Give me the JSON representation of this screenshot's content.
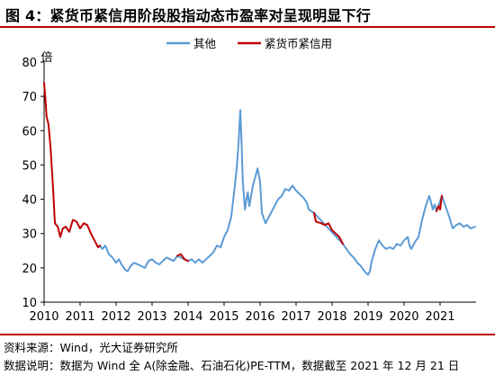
{
  "figure": {
    "title": "图 4：紧货币紧信用阶段股指动态市盈率对呈现明显下行",
    "source": "资料来源：Wind，光大证券研究所",
    "description": "数据说明：数据为 Wind 全 A(除金融、石油石化)PE-TTM，数据截至 2021 年 12 月 21 日"
  },
  "chart_data": {
    "type": "line",
    "title": "",
    "xlabel": "",
    "ylabel": "倍",
    "xlim": [
      2010,
      2022
    ],
    "ylim": [
      10,
      80
    ],
    "x_ticks": [
      "2010",
      "2011",
      "2012",
      "2013",
      "2014",
      "2015",
      "2016",
      "2017",
      "2018",
      "2019",
      "2020",
      "2021"
    ],
    "y_ticks": [
      "10",
      "20",
      "30",
      "40",
      "50",
      "60",
      "70",
      "80"
    ],
    "legend_position": "top-center",
    "colors": {
      "其他": "#5b9bd5",
      "紧货币紧信用": "#c00000"
    },
    "series": [
      {
        "name": "其他",
        "points": [
          [
            2011.55,
            26.5
          ],
          [
            2011.62,
            25.5
          ],
          [
            2011.7,
            26.5
          ],
          [
            2011.8,
            24.0
          ],
          [
            2011.9,
            23.0
          ],
          [
            2012.0,
            21.5
          ],
          [
            2012.08,
            22.5
          ],
          [
            2012.15,
            21.0
          ],
          [
            2012.25,
            19.5
          ],
          [
            2012.32,
            19.0
          ],
          [
            2012.4,
            20.5
          ],
          [
            2012.5,
            21.5
          ],
          [
            2012.6,
            21.0
          ],
          [
            2012.7,
            20.5
          ],
          [
            2012.8,
            20.0
          ],
          [
            2012.9,
            22.0
          ],
          [
            2013.0,
            22.5
          ],
          [
            2013.1,
            21.5
          ],
          [
            2013.2,
            21.0
          ],
          [
            2013.3,
            22.0
          ],
          [
            2013.4,
            23.0
          ],
          [
            2013.5,
            22.5
          ],
          [
            2013.6,
            22.0
          ],
          [
            2013.7,
            23.5
          ],
          [
            2014.0,
            22.0
          ],
          [
            2014.1,
            22.5
          ],
          [
            2014.2,
            21.5
          ],
          [
            2014.3,
            22.5
          ],
          [
            2014.4,
            21.5
          ],
          [
            2014.5,
            22.5
          ],
          [
            2014.6,
            23.5
          ],
          [
            2014.7,
            24.5
          ],
          [
            2014.8,
            26.5
          ],
          [
            2014.9,
            26.0
          ],
          [
            2015.0,
            29.0
          ],
          [
            2015.1,
            31.0
          ],
          [
            2015.2,
            35.0
          ],
          [
            2015.3,
            44.0
          ],
          [
            2015.35,
            49.0
          ],
          [
            2015.4,
            56.0
          ],
          [
            2015.45,
            66.0
          ],
          [
            2015.48,
            58.0
          ],
          [
            2015.52,
            45.0
          ],
          [
            2015.58,
            37.0
          ],
          [
            2015.62,
            40.0
          ],
          [
            2015.66,
            42.0
          ],
          [
            2015.7,
            38.0
          ],
          [
            2015.8,
            44.0
          ],
          [
            2015.88,
            47.0
          ],
          [
            2015.93,
            49.0
          ],
          [
            2016.0,
            45.0
          ],
          [
            2016.05,
            36.0
          ],
          [
            2016.15,
            33.0
          ],
          [
            2016.3,
            36.0
          ],
          [
            2016.4,
            38.0
          ],
          [
            2016.5,
            40.0
          ],
          [
            2016.6,
            41.0
          ],
          [
            2016.7,
            43.0
          ],
          [
            2016.8,
            42.5
          ],
          [
            2016.9,
            44.0
          ],
          [
            2017.0,
            42.5
          ],
          [
            2017.1,
            41.5
          ],
          [
            2017.2,
            40.5
          ],
          [
            2017.3,
            39.0
          ],
          [
            2017.35,
            37.0
          ],
          [
            2017.5,
            36.0
          ],
          [
            2018.3,
            27.0
          ],
          [
            2018.4,
            25.5
          ],
          [
            2018.5,
            24.0
          ],
          [
            2018.6,
            23.0
          ],
          [
            2018.7,
            21.5
          ],
          [
            2018.8,
            20.5
          ],
          [
            2018.9,
            19.0
          ],
          [
            2019.0,
            18.0
          ],
          [
            2019.05,
            19.0
          ],
          [
            2019.1,
            22.0
          ],
          [
            2019.2,
            25.5
          ],
          [
            2019.3,
            28.0
          ],
          [
            2019.4,
            26.5
          ],
          [
            2019.5,
            25.5
          ],
          [
            2019.6,
            26.0
          ],
          [
            2019.7,
            25.5
          ],
          [
            2019.8,
            27.0
          ],
          [
            2019.9,
            26.5
          ],
          [
            2020.0,
            28.0
          ],
          [
            2020.1,
            29.0
          ],
          [
            2020.15,
            26.5
          ],
          [
            2020.2,
            25.5
          ],
          [
            2020.3,
            27.5
          ],
          [
            2020.4,
            29.0
          ],
          [
            2020.5,
            34.0
          ],
          [
            2020.6,
            38.0
          ],
          [
            2020.7,
            41.0
          ],
          [
            2020.75,
            39.0
          ],
          [
            2020.8,
            37.0
          ],
          [
            2020.85,
            38.5
          ],
          [
            2020.9,
            36.5
          ],
          [
            2021.05,
            41.0
          ],
          [
            2021.15,
            38.0
          ],
          [
            2021.25,
            35.0
          ],
          [
            2021.35,
            31.5
          ],
          [
            2021.45,
            32.5
          ],
          [
            2021.55,
            33.0
          ],
          [
            2021.65,
            32.0
          ],
          [
            2021.75,
            32.5
          ],
          [
            2021.85,
            31.5
          ],
          [
            2021.97,
            32.0
          ]
        ]
      },
      {
        "name": "紧货币紧信用",
        "points": [
          [
            2010.0,
            74.0
          ],
          [
            2010.03,
            70.0
          ],
          [
            2010.07,
            64.0
          ],
          [
            2010.12,
            62.0
          ],
          [
            2010.18,
            55.0
          ],
          [
            2010.25,
            43.0
          ],
          [
            2010.3,
            33.0
          ],
          [
            2010.38,
            32.0
          ],
          [
            2010.45,
            29.0
          ],
          [
            2010.52,
            31.5
          ],
          [
            2010.6,
            32.0
          ],
          [
            2010.7,
            30.5
          ],
          [
            2010.8,
            34.0
          ],
          [
            2010.9,
            33.5
          ],
          [
            2011.0,
            31.5
          ],
          [
            2011.1,
            33.0
          ],
          [
            2011.2,
            32.5
          ],
          [
            2011.3,
            30.0
          ],
          [
            2011.4,
            28.0
          ],
          [
            2011.5,
            26.0
          ],
          [
            2011.55,
            26.5
          ]
        ]
      },
      {
        "name": "紧货币紧信用",
        "points": [
          [
            2013.7,
            23.5
          ],
          [
            2013.8,
            24.0
          ],
          [
            2013.9,
            22.5
          ],
          [
            2014.0,
            22.0
          ]
        ]
      },
      {
        "name": "紧货币紧信用",
        "points": [
          [
            2017.5,
            36.0
          ],
          [
            2017.55,
            33.5
          ],
          [
            2017.7,
            33.0
          ],
          [
            2017.8,
            32.5
          ],
          [
            2017.9,
            33.0
          ],
          [
            2018.0,
            31.0
          ],
          [
            2018.1,
            30.0
          ],
          [
            2018.2,
            29.0
          ],
          [
            2018.3,
            27.0
          ]
        ]
      },
      {
        "name": "紧货币紧信用",
        "points": [
          [
            2020.9,
            36.5
          ],
          [
            2020.95,
            38.0
          ],
          [
            2021.0,
            37.0
          ],
          [
            2021.05,
            41.0
          ]
        ]
      }
    ]
  }
}
